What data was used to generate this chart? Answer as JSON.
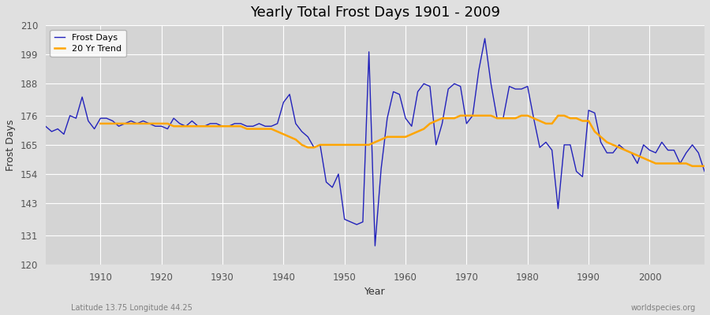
{
  "title": "Yearly Total Frost Days 1901 - 2009",
  "xlabel": "Year",
  "ylabel": "Frost Days",
  "footnote_left": "Latitude 13.75 Longitude 44.25",
  "footnote_right": "worldspecies.org",
  "ylim": [
    120,
    210
  ],
  "yticks": [
    120,
    131,
    143,
    154,
    165,
    176,
    188,
    199,
    210
  ],
  "xlim": [
    1901,
    2009
  ],
  "xticks": [
    1910,
    1920,
    1930,
    1940,
    1950,
    1960,
    1970,
    1980,
    1990,
    2000
  ],
  "line_color": "#2222bb",
  "trend_color": "#FFA500",
  "fig_bg": "#e0e0e0",
  "plot_bg": "#d4d4d4",
  "legend_labels": [
    "Frost Days",
    "20 Yr Trend"
  ],
  "years": [
    1901,
    1902,
    1903,
    1904,
    1905,
    1906,
    1907,
    1908,
    1909,
    1910,
    1911,
    1912,
    1913,
    1914,
    1915,
    1916,
    1917,
    1918,
    1919,
    1920,
    1921,
    1922,
    1923,
    1924,
    1925,
    1926,
    1927,
    1928,
    1929,
    1930,
    1931,
    1932,
    1933,
    1934,
    1935,
    1936,
    1937,
    1938,
    1939,
    1940,
    1941,
    1942,
    1943,
    1944,
    1945,
    1946,
    1947,
    1948,
    1949,
    1950,
    1951,
    1952,
    1953,
    1954,
    1955,
    1956,
    1957,
    1958,
    1959,
    1960,
    1961,
    1962,
    1963,
    1964,
    1965,
    1966,
    1967,
    1968,
    1969,
    1970,
    1971,
    1972,
    1973,
    1974,
    1975,
    1976,
    1977,
    1978,
    1979,
    1980,
    1981,
    1982,
    1983,
    1984,
    1985,
    1986,
    1987,
    1988,
    1989,
    1990,
    1991,
    1992,
    1993,
    1994,
    1995,
    1996,
    1997,
    1998,
    1999,
    2000,
    2001,
    2002,
    2003,
    2004,
    2005,
    2006,
    2007,
    2008,
    2009
  ],
  "frost_days": [
    172,
    170,
    171,
    169,
    176,
    175,
    183,
    174,
    171,
    175,
    175,
    174,
    172,
    173,
    174,
    173,
    174,
    173,
    172,
    172,
    171,
    175,
    173,
    172,
    174,
    172,
    172,
    173,
    173,
    172,
    172,
    173,
    173,
    172,
    172,
    173,
    172,
    172,
    173,
    181,
    184,
    173,
    170,
    168,
    164,
    165,
    151,
    149,
    154,
    137,
    136,
    135,
    136,
    200,
    127,
    156,
    175,
    185,
    184,
    175,
    172,
    185,
    188,
    187,
    165,
    173,
    186,
    188,
    187,
    173,
    176,
    193,
    205,
    188,
    175,
    175,
    187,
    186,
    186,
    187,
    175,
    164,
    166,
    163,
    141,
    165,
    165,
    155,
    153,
    178,
    177,
    166,
    162,
    162,
    165,
    163,
    162,
    158,
    165,
    163,
    162,
    166,
    163,
    163,
    158,
    162,
    165,
    162,
    155
  ],
  "trend_years": [
    1910,
    1911,
    1912,
    1913,
    1914,
    1915,
    1916,
    1917,
    1918,
    1919,
    1920,
    1921,
    1922,
    1923,
    1924,
    1925,
    1926,
    1927,
    1928,
    1929,
    1930,
    1931,
    1932,
    1933,
    1934,
    1935,
    1936,
    1937,
    1938,
    1939,
    1940,
    1941,
    1942,
    1943,
    1944,
    1945,
    1946,
    1947,
    1948,
    1949,
    1950,
    1951,
    1952,
    1953,
    1954,
    1955,
    1956,
    1957,
    1958,
    1959,
    1960,
    1961,
    1962,
    1963,
    1964,
    1965,
    1966,
    1967,
    1968,
    1969,
    1970,
    1971,
    1972,
    1973,
    1974,
    1975,
    1976,
    1977,
    1978,
    1979,
    1980,
    1981,
    1982,
    1983,
    1984,
    1985,
    1986,
    1987,
    1988,
    1989,
    1990,
    1991,
    1992,
    1993,
    1994,
    1995,
    1996,
    1997,
    1998,
    1999,
    2000,
    2001,
    2002,
    2003,
    2004,
    2005,
    2006,
    2007,
    2008,
    2009
  ],
  "trend_values": [
    173,
    173,
    173,
    173,
    173,
    173,
    173,
    173,
    173,
    173,
    173,
    173,
    172,
    172,
    172,
    172,
    172,
    172,
    172,
    172,
    172,
    172,
    172,
    172,
    171,
    171,
    171,
    171,
    171,
    170,
    169,
    168,
    167,
    165,
    164,
    164,
    165,
    165,
    165,
    165,
    165,
    165,
    165,
    165,
    165,
    166,
    167,
    168,
    168,
    168,
    168,
    169,
    170,
    171,
    173,
    174,
    175,
    175,
    175,
    176,
    176,
    176,
    176,
    176,
    176,
    175,
    175,
    175,
    175,
    176,
    176,
    175,
    174,
    173,
    173,
    176,
    176,
    175,
    175,
    174,
    174,
    170,
    168,
    166,
    165,
    164,
    163,
    162,
    161,
    160,
    159,
    158,
    158,
    158,
    158,
    158,
    158,
    157,
    157,
    157
  ]
}
